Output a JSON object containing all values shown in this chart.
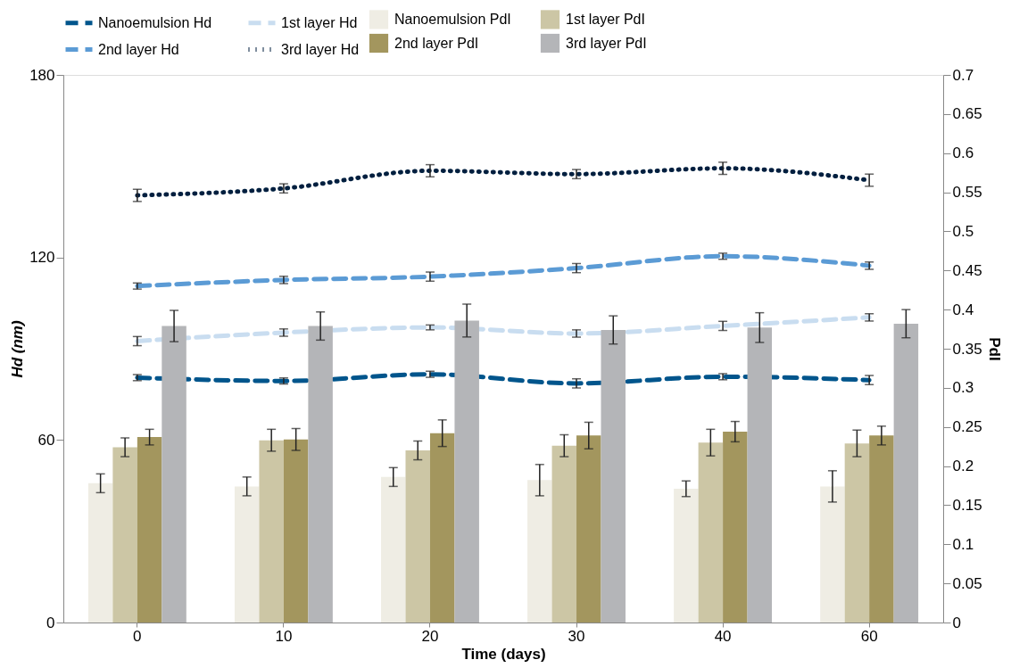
{
  "chart_data": {
    "type": "bar",
    "xlabel": "Time (days)",
    "ylabel": "Hd (nm)",
    "y2label": "PdI",
    "categories": [
      "0",
      "10",
      "20",
      "30",
      "40",
      "60"
    ],
    "ylim": [
      0,
      180
    ],
    "yticks": [
      0,
      60,
      120,
      180
    ],
    "y2lim": [
      0,
      0.7
    ],
    "y2ticks": [
      0,
      0.05,
      0.1,
      0.15,
      0.2,
      0.25,
      0.3,
      0.35,
      0.4,
      0.45,
      0.5,
      0.55,
      0.6,
      0.65,
      0.7
    ],
    "legend": "top",
    "grid": false,
    "series": [
      {
        "name": "Nanoemulsion PdI",
        "axis": "y2",
        "color": "#efede4",
        "values": [
          0.178,
          0.174,
          0.186,
          0.182,
          0.171,
          0.174
        ],
        "errors": [
          0.012,
          0.012,
          0.012,
          0.02,
          0.01,
          0.02
        ]
      },
      {
        "name": "1st layer PdI",
        "axis": "y2",
        "color": "#ccc6a5",
        "values": [
          0.224,
          0.233,
          0.22,
          0.226,
          0.23,
          0.229
        ],
        "errors": [
          0.012,
          0.014,
          0.012,
          0.014,
          0.017,
          0.017
        ]
      },
      {
        "name": "2nd layer PdI",
        "axis": "y2",
        "color": "#a3965e",
        "values": [
          0.237,
          0.234,
          0.242,
          0.239,
          0.244,
          0.239
        ],
        "errors": [
          0.01,
          0.014,
          0.017,
          0.017,
          0.013,
          0.012
        ]
      },
      {
        "name": "3rd layer PdI",
        "axis": "y2",
        "color": "#b4b5b8",
        "values": [
          0.379,
          0.379,
          0.386,
          0.374,
          0.377,
          0.382
        ],
        "errors": [
          0.02,
          0.018,
          0.021,
          0.018,
          0.019,
          0.018
        ]
      },
      {
        "name": "Nanoemulsion Hd",
        "type": "line",
        "line_style": "dashed",
        "color": "#00558c",
        "values": [
          80.5,
          79.4,
          81.6,
          78.6,
          80.8,
          79.7
        ],
        "errors": [
          1,
          1,
          1,
          1.5,
          1,
          1.5
        ]
      },
      {
        "name": "1st layer Hd",
        "type": "line",
        "line_style": "dashed",
        "color": "#c9ddf0",
        "values": [
          92.5,
          95.3,
          97,
          95,
          97.5,
          100.3
        ],
        "errors": [
          1.5,
          1.2,
          0.8,
          1.2,
          1.5,
          1.2
        ]
      },
      {
        "name": "2nd layer Hd",
        "type": "line",
        "line_style": "dashed",
        "color": "#5b9bd5",
        "values": [
          110.6,
          112.6,
          113.7,
          116.5,
          120.4,
          117.3
        ],
        "errors": [
          1,
          1.2,
          1.5,
          1.5,
          1,
          1.2
        ]
      },
      {
        "name": "3rd layer Hd",
        "type": "line",
        "line_style": "dotted",
        "color": "#001f3f",
        "values": [
          140.4,
          142.7,
          148.5,
          147.4,
          149.3,
          145.4
        ],
        "errors": [
          2,
          1.5,
          2,
          1.5,
          2,
          2
        ]
      }
    ]
  }
}
